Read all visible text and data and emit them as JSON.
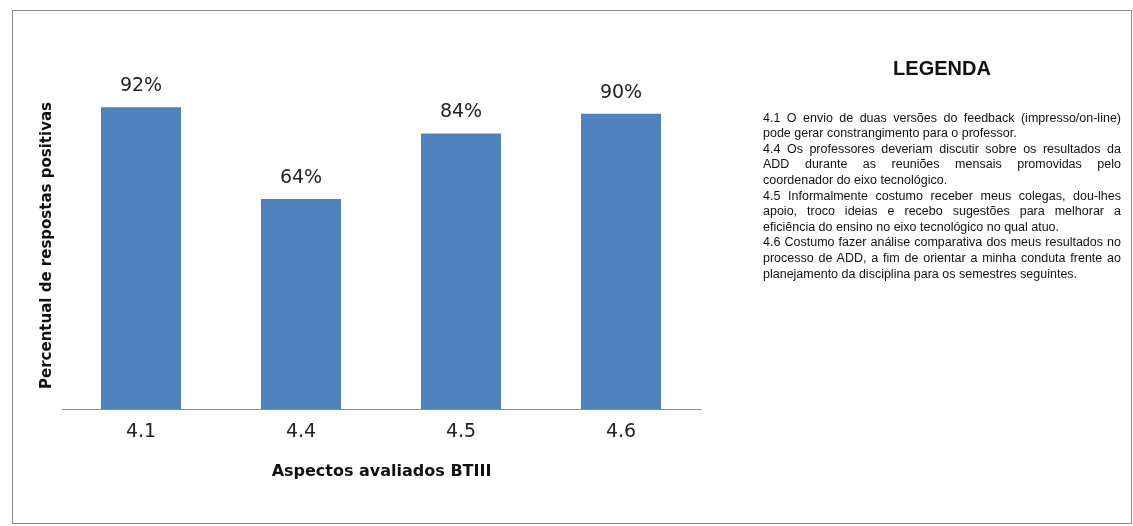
{
  "chart_data": {
    "type": "bar",
    "xlabel": "Aspectos avaliados BTIII",
    "ylabel": "Percentual de respostas positivas",
    "categories": [
      "4.1",
      "4.4",
      "4.5",
      "4.6"
    ],
    "values": [
      92,
      64,
      84,
      90
    ],
    "value_labels": [
      "92%",
      "64%",
      "84%",
      "90%"
    ],
    "color": "#4f81bd",
    "grid": false,
    "annotations": [
      "LEGENDA",
      "4.1 O envio de duas versões do feedback (impresso/on-line) pode gerar constrangimento para o professor.",
      "4.4 Os professores deveriam  discutir sobre os resultados da ADD durante as reuniões mensais promovidas pelo coordenador do eixo tecnológico.",
      "4.5 Informalmente costumo  receber meus colegas, dou-lhes apoio, troco ideias e recebo sugestões para melhorar a eficiência do ensino no eixo tecnológico no qual atuo.",
      "4.6 Costumo fazer análise comparativa  dos meus resultados no processo de ADD, a fim de orientar a minha conduta frente ao planejamento  da disciplina para os semestres seguintes."
    ]
  }
}
